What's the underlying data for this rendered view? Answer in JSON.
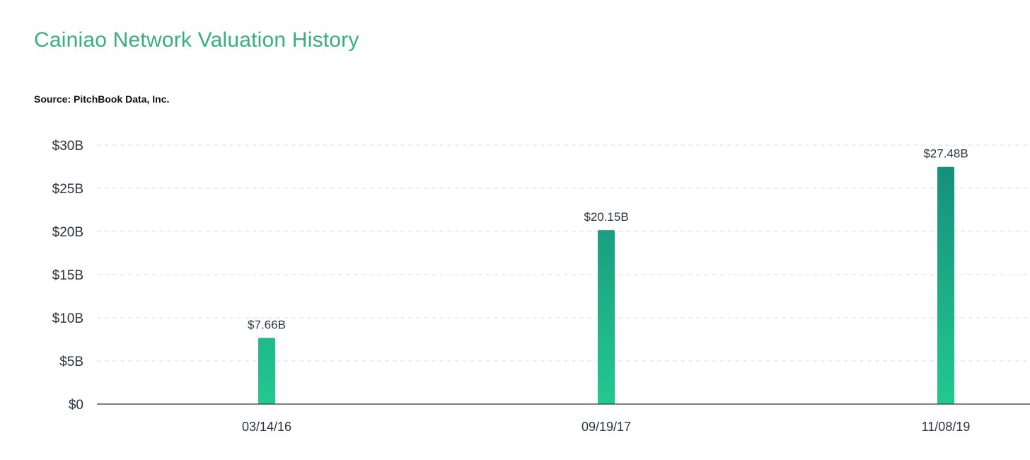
{
  "chart_data": {
    "type": "bar",
    "title": "Cainiao Network Valuation History",
    "source": "Source: PitchBook Data, Inc.",
    "categories": [
      "03/14/16",
      "09/19/17",
      "11/08/19"
    ],
    "values": [
      7.66,
      20.15,
      27.48
    ],
    "data_labels": [
      "$7.66B",
      "$20.15B",
      "$27.48B"
    ],
    "ylim": [
      0,
      30
    ],
    "yticks": [
      0,
      5,
      10,
      15,
      20,
      25,
      30
    ],
    "ytick_labels": [
      "$0",
      "$5B",
      "$10B",
      "$15B",
      "$20B",
      "$25B",
      "$30B"
    ],
    "xlabel": "",
    "ylabel": "",
    "grid": true,
    "legend": "none",
    "colors": {
      "title": "#3aaf7e",
      "bar_top": "#168a7a",
      "bar_bottom": "#22c98f",
      "text": "#2c3442"
    }
  }
}
